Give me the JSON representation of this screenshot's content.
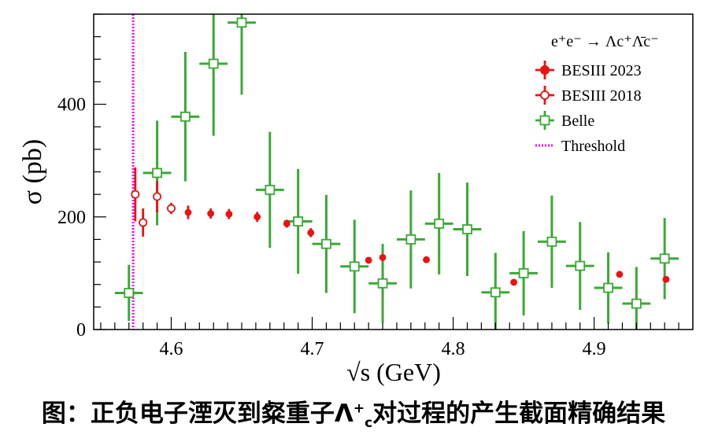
{
  "chart_data": {
    "type": "scatter",
    "title": "e⁺e⁻ → Λc⁺Λ̄c⁻",
    "xlabel": "√s (GeV)",
    "ylabel": "σ (pb)",
    "xlim": [
      4.545,
      4.97
    ],
    "ylim": [
      0,
      560
    ],
    "x_ticks": [
      4.6,
      4.7,
      4.8,
      4.9
    ],
    "x_tick_labels": [
      "4.6",
      "4.7",
      "4.8",
      "4.9"
    ],
    "y_ticks": [
      0,
      200,
      400
    ],
    "y_tick_labels": [
      "0",
      "200",
      "400"
    ],
    "legend_position": "top-right",
    "threshold": {
      "name": "Threshold",
      "x": 4.573,
      "color": "#ff00ff"
    },
    "series": [
      {
        "name": "BESIII 2023",
        "marker": "filled-circle",
        "color": "#ee1111",
        "points": [
          {
            "x": 4.612,
            "y": 208,
            "err": 12
          },
          {
            "x": 4.628,
            "y": 206,
            "err": 9
          },
          {
            "x": 4.641,
            "y": 205,
            "err": 9
          },
          {
            "x": 4.661,
            "y": 200,
            "err": 9
          },
          {
            "x": 4.682,
            "y": 188,
            "err": 7
          },
          {
            "x": 4.699,
            "y": 172,
            "err": 8
          },
          {
            "x": 4.74,
            "y": 123,
            "err": 5
          },
          {
            "x": 4.75,
            "y": 128,
            "err": 5
          },
          {
            "x": 4.781,
            "y": 124,
            "err": 4
          },
          {
            "x": 4.843,
            "y": 84,
            "err": 4
          },
          {
            "x": 4.918,
            "y": 98,
            "err": 4
          },
          {
            "x": 4.951,
            "y": 89,
            "err": 4
          }
        ]
      },
      {
        "name": "BESIII 2018",
        "marker": "open-circle",
        "color": "#ee1111",
        "points": [
          {
            "x": 4.5745,
            "y": 240,
            "err": 48
          },
          {
            "x": 4.58,
            "y": 190,
            "err": 25
          },
          {
            "x": 4.59,
            "y": 236,
            "err": 28
          },
          {
            "x": 4.6,
            "y": 215,
            "err": 10
          }
        ]
      },
      {
        "name": "Belle",
        "marker": "open-square",
        "color": "#3aa935",
        "xerr": 0.01,
        "points": [
          {
            "x": 4.57,
            "y": 65,
            "err": 50
          },
          {
            "x": 4.59,
            "y": 278,
            "err": 93
          },
          {
            "x": 4.61,
            "y": 378,
            "err": 115
          },
          {
            "x": 4.63,
            "y": 472,
            "err": 128
          },
          {
            "x": 4.65,
            "y": 545,
            "err": 128
          },
          {
            "x": 4.67,
            "y": 248,
            "err": 103
          },
          {
            "x": 4.69,
            "y": 192,
            "err": 93
          },
          {
            "x": 4.71,
            "y": 152,
            "err": 87
          },
          {
            "x": 4.73,
            "y": 112,
            "err": 83
          },
          {
            "x": 4.75,
            "y": 82,
            "err": 70
          },
          {
            "x": 4.77,
            "y": 160,
            "err": 87
          },
          {
            "x": 4.79,
            "y": 188,
            "err": 90
          },
          {
            "x": 4.81,
            "y": 178,
            "err": 83
          },
          {
            "x": 4.83,
            "y": 66,
            "err": 70
          },
          {
            "x": 4.85,
            "y": 100,
            "err": 75
          },
          {
            "x": 4.87,
            "y": 156,
            "err": 82
          },
          {
            "x": 4.89,
            "y": 113,
            "err": 78
          },
          {
            "x": 4.91,
            "y": 74,
            "err": 63
          },
          {
            "x": 4.93,
            "y": 46,
            "err": 65
          },
          {
            "x": 4.95,
            "y": 126,
            "err": 72
          }
        ]
      }
    ]
  },
  "caption": {
    "prefix": "图：正负电子湮灭到粲重子",
    "lambda": "Λ",
    "sup": "+",
    "sub": "c",
    "suffix": "对过程的产生截面精确结果"
  }
}
